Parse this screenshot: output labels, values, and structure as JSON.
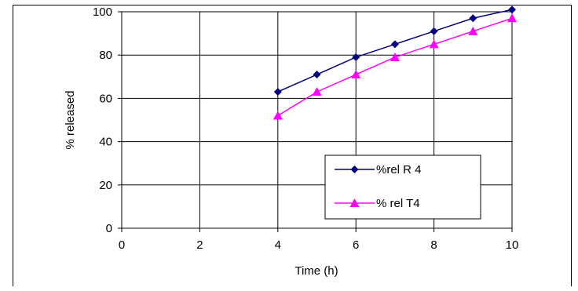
{
  "chart_data": {
    "type": "line",
    "title": "",
    "xlabel": "Time (h)",
    "ylabel": "% released",
    "xlim": [
      0,
      10
    ],
    "ylim": [
      0,
      100
    ],
    "xticks": [
      0,
      2,
      4,
      6,
      8,
      10
    ],
    "yticks": [
      0,
      20,
      40,
      60,
      80,
      100
    ],
    "grid": true,
    "legend_position": "bottom-right",
    "series": [
      {
        "name": "%rel R 4",
        "color": "#000080",
        "marker": "diamond",
        "x": [
          4,
          5,
          6,
          7,
          8,
          9,
          10
        ],
        "y": [
          63,
          71,
          79,
          85,
          91,
          97,
          101
        ]
      },
      {
        "name": "% rel T4",
        "color": "#FF00FF",
        "marker": "triangle",
        "x": [
          4,
          5,
          6,
          7,
          8,
          9,
          10
        ],
        "y": [
          52,
          63,
          71,
          79,
          85,
          91,
          97
        ]
      }
    ]
  }
}
